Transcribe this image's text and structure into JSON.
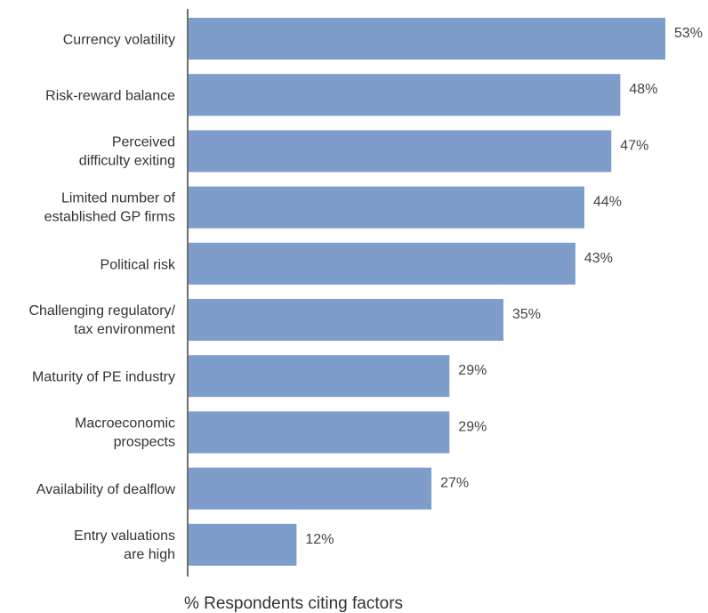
{
  "colors": {
    "bar": "#7f9dcb",
    "axis": "#6f6f6f"
  },
  "chart_data": {
    "type": "bar",
    "orientation": "horizontal",
    "xlabel": "% Respondents citing factors",
    "value_suffix": "%",
    "xlim": [
      0,
      55
    ],
    "categories": [
      [
        "Currency volatility"
      ],
      [
        "Risk-reward balance"
      ],
      [
        "Perceived",
        "difficulty exiting"
      ],
      [
        "Limited number of",
        "established GP firms"
      ],
      [
        "Political risk"
      ],
      [
        "Challenging regulatory/",
        "tax environment"
      ],
      [
        "Maturity of PE industry"
      ],
      [
        "Macroeconomic",
        "prospects"
      ],
      [
        "Availability of dealflow"
      ],
      [
        "Entry valuations",
        "are high"
      ]
    ],
    "values": [
      53,
      48,
      47,
      44,
      43,
      35,
      29,
      29,
      27,
      12
    ]
  }
}
